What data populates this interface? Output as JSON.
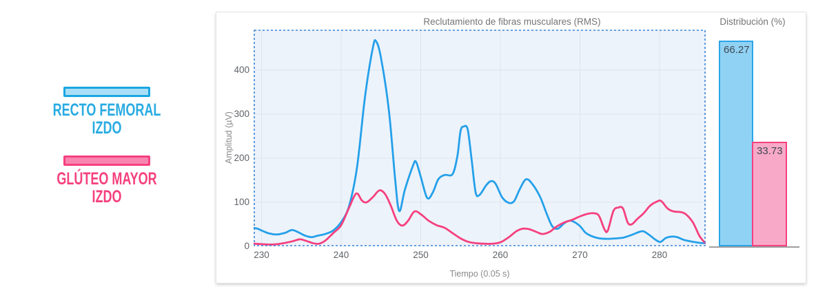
{
  "legend": {
    "items": [
      {
        "id": "recto-femoral",
        "label_line1": "RECTO FEMORAL",
        "label_line2": "IZDO",
        "text_color": "#29abe2",
        "swatch_fill": "#a9def6",
        "swatch_border": "#1aa6e1"
      },
      {
        "id": "gluteo-mayor",
        "label_line1": "GLÚTEO MAYOR",
        "label_line2": "IZDO",
        "text_color": "#f5407e",
        "swatch_fill": "#f885b0",
        "swatch_border": "#f5407e"
      }
    ]
  },
  "chart_data": [
    {
      "type": "line",
      "title": "Reclutamiento de fibras musculares (RMS)",
      "xlabel": "Tiempo (0.05 s)",
      "ylabel": "Amplitud (µV)",
      "xlim": [
        229,
        285.8
      ],
      "ylim": [
        0,
        492
      ],
      "xticks": [
        230,
        240,
        250,
        260,
        270,
        280
      ],
      "yticks": [
        0,
        100,
        200,
        300,
        400
      ],
      "grid": true,
      "plot_bg": "#edf3fa",
      "grid_color": "#dde4f0",
      "border_color": "#3d84d8",
      "border_style": "dashed",
      "legend_position": "outside-left",
      "series": [
        {
          "name": "Recto Femoral Izdo",
          "color": "#24a0ea",
          "points": [
            [
              229,
              42
            ],
            [
              229.5,
              40
            ],
            [
              230,
              36
            ],
            [
              231,
              29
            ],
            [
              232,
              27
            ],
            [
              233,
              31
            ],
            [
              233.8,
              37
            ],
            [
              234.5,
              33
            ],
            [
              235.5,
              24
            ],
            [
              236.3,
              21
            ],
            [
              237,
              24
            ],
            [
              238,
              28
            ],
            [
              239,
              36
            ],
            [
              240,
              55
            ],
            [
              241,
              92
            ],
            [
              242,
              180
            ],
            [
              243,
              340
            ],
            [
              244,
              452
            ],
            [
              244.4,
              465
            ],
            [
              245,
              428
            ],
            [
              246,
              308
            ],
            [
              246.8,
              148
            ],
            [
              247.3,
              80
            ],
            [
              248,
              128
            ],
            [
              249,
              182
            ],
            [
              249.4,
              192
            ],
            [
              250,
              158
            ],
            [
              250.8,
              110
            ],
            [
              251.5,
              122
            ],
            [
              252.2,
              152
            ],
            [
              253,
              162
            ],
            [
              254,
              164
            ],
            [
              254.6,
              205
            ],
            [
              255,
              262
            ],
            [
              255.4,
              272
            ],
            [
              255.9,
              265
            ],
            [
              256.4,
              195
            ],
            [
              256.9,
              122
            ],
            [
              257.4,
              117
            ],
            [
              258.2,
              138
            ],
            [
              258.8,
              148
            ],
            [
              259.4,
              142
            ],
            [
              260.2,
              112
            ],
            [
              261,
              99
            ],
            [
              261.7,
              102
            ],
            [
              262.4,
              128
            ],
            [
              263.2,
              152
            ],
            [
              264,
              142
            ],
            [
              265,
              112
            ],
            [
              265.8,
              75
            ],
            [
              266.5,
              46
            ],
            [
              267.2,
              40
            ],
            [
              268,
              52
            ],
            [
              268.6,
              58
            ],
            [
              269.2,
              56
            ],
            [
              270,
              46
            ],
            [
              270.7,
              31
            ],
            [
              271.5,
              23
            ],
            [
              272.5,
              18
            ],
            [
              273.5,
              17
            ],
            [
              274.5,
              18
            ],
            [
              275.5,
              20
            ],
            [
              276.5,
              26
            ],
            [
              277.5,
              33
            ],
            [
              278,
              34
            ],
            [
              278.7,
              26
            ],
            [
              279.5,
              15
            ],
            [
              280.1,
              10
            ],
            [
              280.8,
              19
            ],
            [
              281.5,
              22
            ],
            [
              282.2,
              21
            ],
            [
              283,
              15
            ],
            [
              284,
              11
            ],
            [
              285,
              8
            ],
            [
              285.7,
              7
            ]
          ]
        },
        {
          "name": "Glúteo Mayor Izdo",
          "color": "#f5407e",
          "points": [
            [
              229,
              6
            ],
            [
              230,
              5
            ],
            [
              231,
              4
            ],
            [
              232,
              5
            ],
            [
              233,
              8
            ],
            [
              234,
              12
            ],
            [
              234.8,
              16
            ],
            [
              235.5,
              13
            ],
            [
              236.5,
              7
            ],
            [
              237.2,
              6
            ],
            [
              238,
              13
            ],
            [
              239,
              30
            ],
            [
              240,
              48
            ],
            [
              241,
              88
            ],
            [
              241.9,
              120
            ],
            [
              242.6,
              104
            ],
            [
              243.2,
              100
            ],
            [
              244,
              112
            ],
            [
              244.8,
              127
            ],
            [
              245.5,
              119
            ],
            [
              246.2,
              94
            ],
            [
              247,
              58
            ],
            [
              247.7,
              47
            ],
            [
              248.4,
              58
            ],
            [
              249.2,
              79
            ],
            [
              250,
              73
            ],
            [
              251,
              58
            ],
            [
              252,
              48
            ],
            [
              253,
              42
            ],
            [
              254,
              30
            ],
            [
              255,
              18
            ],
            [
              256,
              10
            ],
            [
              257,
              7
            ],
            [
              258,
              6
            ],
            [
              259,
              6
            ],
            [
              260,
              9
            ],
            [
              261,
              20
            ],
            [
              262,
              34
            ],
            [
              262.8,
              40
            ],
            [
              263.6,
              39
            ],
            [
              264.5,
              33
            ],
            [
              265.3,
              28
            ],
            [
              266.2,
              33
            ],
            [
              267,
              44
            ],
            [
              268,
              54
            ],
            [
              269,
              60
            ],
            [
              270,
              68
            ],
            [
              271,
              74
            ],
            [
              271.8,
              75
            ],
            [
              272.4,
              69
            ],
            [
              273.1,
              38
            ],
            [
              273.5,
              36
            ],
            [
              274.2,
              80
            ],
            [
              274.8,
              88
            ],
            [
              275.4,
              86
            ],
            [
              276,
              54
            ],
            [
              276.5,
              50
            ],
            [
              277.2,
              62
            ],
            [
              278,
              75
            ],
            [
              278.8,
              92
            ],
            [
              279.6,
              101
            ],
            [
              280.2,
              103
            ],
            [
              281,
              86
            ],
            [
              281.8,
              79
            ],
            [
              282.6,
              78
            ],
            [
              283.3,
              73
            ],
            [
              284.2,
              54
            ],
            [
              285,
              24
            ],
            [
              285.7,
              8
            ]
          ]
        }
      ]
    },
    {
      "type": "bar",
      "title": "Distribución (%)",
      "categories": [
        "Recto Femoral Izdo",
        "Glúteo Mayor Izdo"
      ],
      "values": [
        66.27,
        33.73
      ],
      "value_labels": [
        "66.27",
        "33.73"
      ],
      "bar_fills": [
        "#90d2f4",
        "#f8a9c8"
      ],
      "bar_borders": [
        "#2aa5e8",
        "#f5407e"
      ],
      "baseline_color": "#9e9e9e",
      "ylim": [
        0,
        70
      ]
    }
  ]
}
